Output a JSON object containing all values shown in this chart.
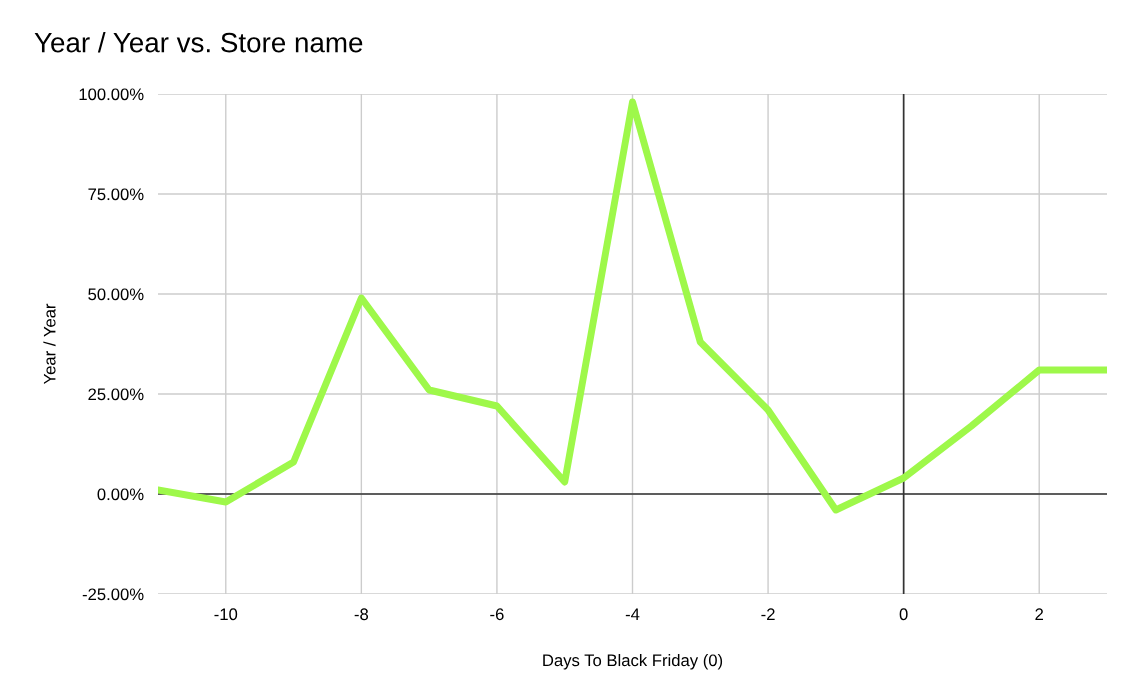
{
  "chart_data": {
    "type": "line",
    "title": "Year / Year vs. Store name",
    "xlabel": "Days To Black Friday (0)",
    "ylabel": "Year / Year",
    "x": [
      -11,
      -10,
      -9,
      -8,
      -7,
      -6,
      -5,
      -4,
      -3,
      -2,
      -1,
      0,
      1,
      2,
      3
    ],
    "series": [
      {
        "color": "#9ef84a",
        "values": [
          1,
          -2,
          8,
          49,
          26,
          22,
          3,
          98,
          38,
          21,
          -4,
          4,
          17,
          31,
          31
        ]
      }
    ],
    "xlim": [
      -11,
      3
    ],
    "xticks": [
      -10,
      -8,
      -6,
      -4,
      -2,
      0,
      2
    ],
    "ylim": [
      -25,
      100
    ],
    "yticks": [
      {
        "value": -25,
        "label": "-25.00%"
      },
      {
        "value": 0,
        "label": "0.00%"
      },
      {
        "value": 25,
        "label": "25.00%"
      },
      {
        "value": 50,
        "label": "50.00%"
      },
      {
        "value": 75,
        "label": "75.00%"
      },
      {
        "value": 100,
        "label": "100.00%"
      }
    ],
    "grid": true,
    "legend": false,
    "marker": "none",
    "line_style": "solid"
  }
}
